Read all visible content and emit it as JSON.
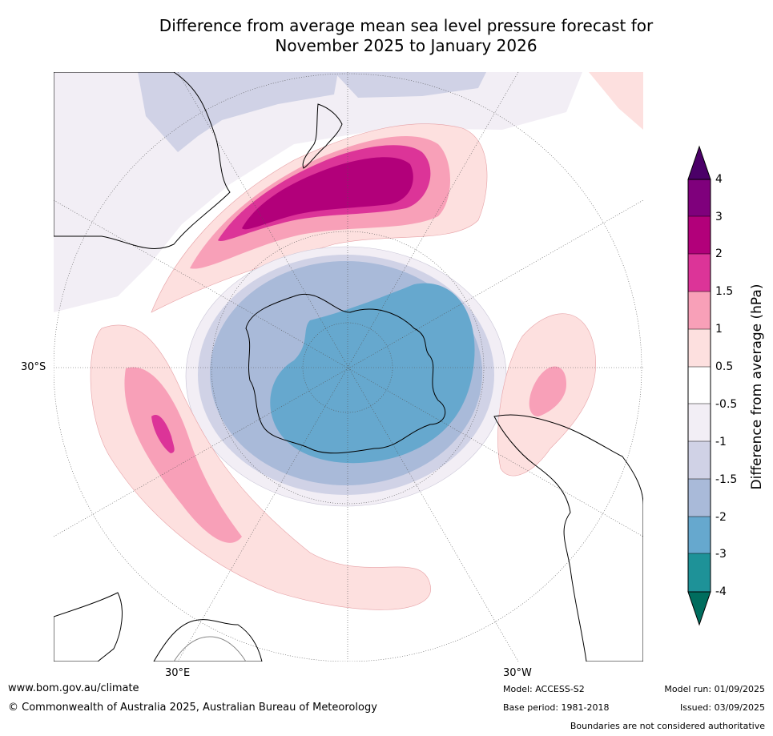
{
  "title": {
    "line1": "Difference from average mean sea level pressure forecast for",
    "line2": "November 2025 to January 2026"
  },
  "map": {
    "projection": "south-polar-stereographic",
    "grid_labels": {
      "lat_30s": "30°S",
      "lon_30e": "30°E",
      "lon_30w": "30°W"
    },
    "regions": [
      {
        "name": "new-zealand-tasman-high",
        "category": "2 to 3",
        "description": "positive anomaly band"
      },
      {
        "name": "antarctic-low",
        "category": "-2 to -3",
        "description": "negative anomaly over Antarctica"
      },
      {
        "name": "indian-ocean-high",
        "category": "1.5 to 2"
      },
      {
        "name": "south-atlantic-high",
        "category": "1 to 1.5"
      }
    ]
  },
  "colorbar": {
    "title": "Difference from average (hPa)",
    "labels": [
      "4",
      "3",
      "2",
      "1.5",
      "1",
      "0.5",
      "-0.5",
      "-1",
      "-1.5",
      "-2",
      "-3",
      "-4"
    ],
    "colors": {
      "gt4": "#4b0068",
      "c3_4": "#7f007c",
      "c2_3": "#b2007a",
      "c1_5_2": "#dc3498",
      "c1_1_5": "#f8a0b8",
      "c0_5_1": "#fde0df",
      "c_neutral": "#ffffff",
      "cm0_5_m1": "#f2eef5",
      "cm1_m1_5": "#d0d2e6",
      "cm1_5_m2": "#a9bad9",
      "cm2_m3": "#66a8ce",
      "cm3_m4": "#1e9298",
      "lt_m4": "#006d5e"
    }
  },
  "footer": {
    "url": "www.bom.gov.au/climate",
    "copyright": "© Commonwealth of Australia 2025, Australian Bureau of Meteorology",
    "model": "Model: ACCESS-S2",
    "base_period": "Base period: 1981-2018",
    "model_run": "Model run: 01/09/2025",
    "issued": "Issued: 03/09/2025",
    "disclaimer": "Boundaries are not considered authoritative"
  }
}
